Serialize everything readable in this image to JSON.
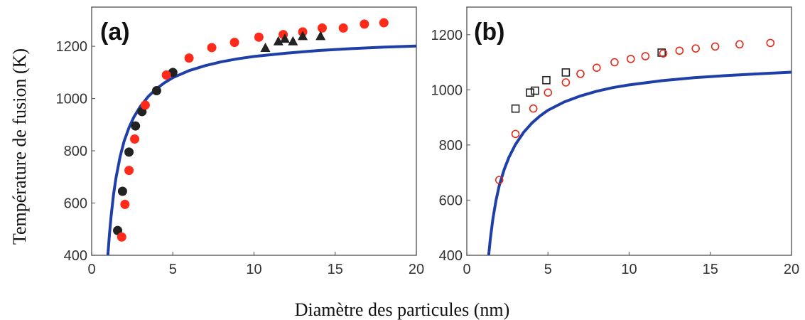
{
  "figure": {
    "ylabel": "Température de fusion (K)",
    "xlabel": "Diamètre des particules (nm)"
  },
  "chart_data": [
    {
      "type": "scatter",
      "panel_label": "(a)",
      "xlim": [
        0,
        20
      ],
      "ylim": [
        400,
        1350
      ],
      "x_ticks": [
        0,
        5,
        10,
        15,
        20
      ],
      "y_ticks": [
        400,
        600,
        800,
        1000,
        1200
      ],
      "grid": false,
      "series": [
        {
          "kind": "line",
          "color": "#1f3fa8",
          "x": [
            1.0,
            1.1,
            1.2,
            1.35,
            1.5,
            1.75,
            2.0,
            2.3,
            2.6,
            3.0,
            3.5,
            4.0,
            4.5,
            5.0,
            6.0,
            7.0,
            8.0,
            9.0,
            10.0,
            12.0,
            14.0,
            16.0,
            18.0,
            20.0
          ],
          "y": [
            400,
            482,
            550,
            633,
            697,
            777,
            837,
            889,
            929,
            970,
            1009,
            1038,
            1061,
            1080,
            1107,
            1126,
            1141,
            1152,
            1161,
            1174,
            1184,
            1191,
            1197,
            1201
          ]
        },
        {
          "kind": "marker",
          "marker": "circle",
          "color": "#222222",
          "x": [
            1.6,
            1.9,
            2.3,
            2.7,
            3.1,
            4.0,
            5.0
          ],
          "y": [
            495,
            645,
            795,
            895,
            950,
            1030,
            1100
          ]
        },
        {
          "kind": "marker",
          "marker": "circle",
          "color": "#ff2a1a",
          "x": [
            1.85,
            2.05,
            2.3,
            2.65,
            3.3,
            4.6,
            6.0,
            7.4,
            8.8,
            10.3,
            11.8,
            13.0,
            14.2,
            15.5,
            16.8,
            18.0
          ],
          "y": [
            470,
            595,
            725,
            845,
            975,
            1090,
            1155,
            1195,
            1215,
            1235,
            1245,
            1255,
            1270,
            1270,
            1285,
            1290
          ]
        },
        {
          "kind": "marker",
          "marker": "triangle",
          "color": "#222222",
          "x": [
            10.7,
            11.5,
            11.9,
            12.4,
            13.0,
            14.1
          ],
          "y": [
            1195,
            1220,
            1230,
            1220,
            1240,
            1240
          ]
        }
      ]
    },
    {
      "type": "scatter",
      "panel_label": "(b)",
      "xlim": [
        0,
        20
      ],
      "ylim": [
        400,
        1300
      ],
      "x_ticks": [
        0,
        5,
        10,
        15,
        20
      ],
      "y_ticks": [
        400,
        600,
        800,
        1000,
        1200
      ],
      "grid": false,
      "series": [
        {
          "kind": "line",
          "color": "#1f3fa8",
          "x": [
            1.35,
            1.45,
            1.6,
            1.8,
            2.0,
            2.3,
            2.6,
            3.0,
            3.5,
            4.0,
            4.5,
            5.0,
            6.0,
            7.0,
            8.0,
            9.0,
            10.0,
            12.0,
            14.0,
            16.0,
            18.0,
            20.0
          ],
          "y": [
            400,
            459,
            530,
            599,
            653,
            711,
            756,
            802,
            846,
            879,
            905,
            926,
            956,
            978,
            995,
            1008,
            1018,
            1033,
            1044,
            1052,
            1058,
            1064
          ]
        },
        {
          "kind": "marker",
          "marker": "square-open",
          "color": "#222222",
          "x": [
            3.0,
            3.9,
            4.2,
            4.9,
            6.1,
            12.0
          ],
          "y": [
            932,
            990,
            997,
            1035,
            1063,
            1135
          ]
        },
        {
          "kind": "marker",
          "marker": "circle-open",
          "color": "#e02a1a",
          "x": [
            2.0,
            3.0,
            4.1,
            5.0,
            6.1,
            7.0,
            8.0,
            9.1,
            10.1,
            11.0,
            12.1,
            13.1,
            14.1,
            15.3,
            16.8,
            18.7
          ],
          "y": [
            673,
            840,
            932,
            990,
            1027,
            1058,
            1080,
            1100,
            1112,
            1122,
            1132,
            1142,
            1150,
            1157,
            1165,
            1170
          ]
        }
      ]
    }
  ]
}
